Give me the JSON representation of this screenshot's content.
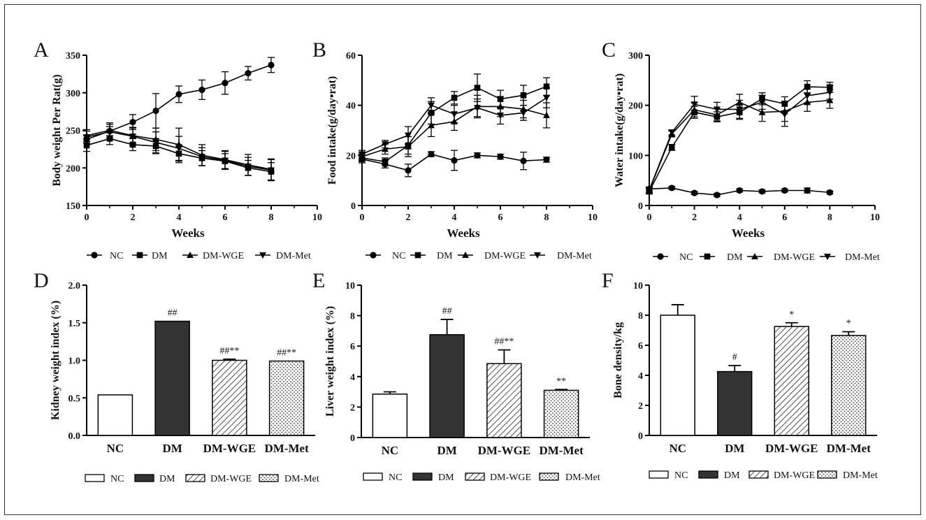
{
  "patterns": {
    "NC": "white",
    "DM": "solid",
    "DM-WGE": "hatch",
    "DM-Met": "dots"
  },
  "chart_data": [
    {
      "panel": "A",
      "type": "line",
      "xlabel": "Weeks",
      "ylabel": "Body weight Per Rat(g)",
      "xlim": [
        0,
        10
      ],
      "ylim": [
        150,
        350
      ],
      "xticks": [
        0,
        2,
        4,
        6,
        8,
        10
      ],
      "yticks": [
        150,
        200,
        250,
        300,
        350
      ],
      "x": [
        0,
        1,
        2,
        3,
        4,
        5,
        6,
        7,
        8
      ],
      "series": [
        {
          "name": "NC",
          "marker": "circle",
          "values": [
            238,
            249,
            261,
            276,
            298,
            304,
            313,
            326,
            337
          ],
          "errors": [
            5,
            6,
            10,
            23,
            11,
            13,
            15,
            9,
            10
          ]
        },
        {
          "name": "DM",
          "marker": "square",
          "values": [
            230,
            239,
            231,
            229,
            219,
            213,
            209,
            200,
            195
          ],
          "errors": [
            8,
            8,
            8,
            10,
            12,
            10,
            10,
            10,
            12
          ]
        },
        {
          "name": "DM-WGE",
          "marker": "triangle",
          "values": [
            243,
            250,
            243,
            238,
            231,
            217,
            211,
            204,
            198
          ],
          "errors": [
            8,
            10,
            10,
            15,
            22,
            14,
            12,
            14,
            14
          ]
        },
        {
          "name": "DM-Met",
          "marker": "triangle-down",
          "values": [
            241,
            248,
            242,
            234,
            226,
            215,
            210,
            202,
            197
          ],
          "errors": [
            8,
            10,
            12,
            14,
            16,
            12,
            12,
            12,
            14
          ]
        }
      ],
      "legend": [
        "NC",
        "DM",
        "DM-WGE",
        "DM-Met"
      ]
    },
    {
      "panel": "B",
      "type": "line",
      "xlabel": "Weeks",
      "ylabel": "Food intake(g/day•rat)",
      "xlim": [
        0,
        10
      ],
      "ylim": [
        0,
        60
      ],
      "xticks": [
        0,
        2,
        4,
        6,
        8,
        10
      ],
      "yticks": [
        0,
        20,
        40,
        60
      ],
      "x": [
        0,
        1,
        2,
        3,
        4,
        5,
        6,
        7,
        8
      ],
      "series": [
        {
          "name": "NC",
          "marker": "circle",
          "values": [
            18.5,
            16.5,
            14,
            20.5,
            18,
            20,
            19.5,
            17.8,
            18.3
          ],
          "errors": [
            1.5,
            1.5,
            2.5,
            1,
            4,
            1,
            1,
            3.5,
            1
          ]
        },
        {
          "name": "DM",
          "marker": "square",
          "values": [
            19,
            17.5,
            24,
            37,
            43,
            47,
            42.5,
            44,
            47.5
          ],
          "errors": [
            1.5,
            1.5,
            3.5,
            4.5,
            2.5,
            5.5,
            3.5,
            4,
            3.5
          ]
        },
        {
          "name": "DM-WGE",
          "marker": "triangle",
          "values": [
            19.5,
            22.5,
            23.5,
            32,
            33.5,
            39.5,
            39.5,
            38.5,
            36
          ],
          "errors": [
            1.5,
            2,
            4,
            4.5,
            3.5,
            4.5,
            4,
            3.5,
            5
          ]
        },
        {
          "name": "DM-Met",
          "marker": "triangle-down",
          "values": [
            20.5,
            24.5,
            28,
            40,
            36.5,
            39,
            36,
            37,
            43
          ],
          "errors": [
            1.5,
            1.5,
            3.5,
            3,
            3.5,
            3.5,
            3.5,
            3,
            4
          ]
        }
      ],
      "legend": [
        "NC",
        "DM",
        "DM-WGE",
        "DM-Met"
      ]
    },
    {
      "panel": "C",
      "type": "line",
      "xlabel": "Weeks",
      "ylabel": "Water  intake(g/day•rat)",
      "xlim": [
        0,
        10
      ],
      "ylim": [
        0,
        300
      ],
      "xticks": [
        0,
        2,
        4,
        6,
        8,
        10
      ],
      "yticks": [
        0,
        100,
        200,
        300
      ],
      "x": [
        0,
        1,
        2,
        3,
        4,
        5,
        6,
        7,
        8
      ],
      "series": [
        {
          "name": "NC",
          "marker": "circle",
          "values": [
            33,
            35,
            25,
            21,
            30,
            28,
            30,
            30,
            26
          ],
          "errors": [
            4,
            3,
            3,
            3,
            3,
            3,
            3,
            5,
            3
          ]
        },
        {
          "name": "DM",
          "marker": "square",
          "values": [
            28,
            116,
            186,
            177,
            186,
            213,
            203,
            237,
            236
          ],
          "errors": [
            5,
            6,
            12,
            10,
            14,
            12,
            14,
            12,
            10
          ]
        },
        {
          "name": "DM-WGE",
          "marker": "triangle",
          "values": [
            30,
            143,
            191,
            181,
            206,
            186,
            188,
            206,
            210
          ],
          "errors": [
            5,
            6,
            14,
            12,
            16,
            18,
            20,
            18,
            16
          ]
        },
        {
          "name": "DM-Met",
          "marker": "triangle-down",
          "values": [
            31,
            146,
            202,
            192,
            192,
            206,
            182,
            219,
            226
          ],
          "errors": [
            5,
            5,
            16,
            14,
            18,
            14,
            24,
            14,
            14
          ]
        }
      ],
      "legend": [
        "NC",
        "DM",
        "DM-WGE",
        "DM-Met"
      ]
    },
    {
      "panel": "D",
      "type": "bar",
      "ylabel": "Kidney weight index (%)",
      "ylim": [
        0,
        2
      ],
      "yticks": [
        "0.0",
        "0.5",
        "1.0",
        "1.5",
        "2.0"
      ],
      "categories": [
        "NC",
        "DM",
        "DM-WGE",
        "DM-Met"
      ],
      "values": [
        0.54,
        1.52,
        1.0,
        0.99
      ],
      "errors": [
        0,
        0,
        0.015,
        0
      ],
      "annotations": [
        "",
        "##",
        "##**",
        "##**"
      ],
      "legend": [
        "NC",
        "DM",
        "DM-WGE",
        "DM-Met"
      ]
    },
    {
      "panel": "E",
      "type": "bar",
      "ylabel": "Liver weight index (%)",
      "ylim": [
        0,
        10
      ],
      "yticks": [
        "0",
        "2",
        "4",
        "6",
        "8",
        "10"
      ],
      "categories": [
        "NC",
        "DM",
        "DM-WGE",
        "DM-Met"
      ],
      "values": [
        2.85,
        6.75,
        4.85,
        3.1
      ],
      "errors": [
        0.15,
        1.0,
        0.9,
        0.05
      ],
      "annotations": [
        "",
        "##",
        "##**",
        "**"
      ],
      "legend": [
        "NC",
        "DM",
        "DM-WGE",
        "DM-Met"
      ]
    },
    {
      "panel": "F",
      "type": "bar",
      "ylabel": "Bone density/kg",
      "ylim": [
        0,
        10
      ],
      "yticks": [
        "0",
        "2",
        "4",
        "6",
        "8",
        "10"
      ],
      "categories": [
        "NC",
        "DM",
        "DM-WGE",
        "DM-Met"
      ],
      "values": [
        8.0,
        4.25,
        7.25,
        6.65
      ],
      "errors": [
        0.7,
        0.4,
        0.25,
        0.25
      ],
      "annotations": [
        "",
        "#",
        "*",
        "*"
      ],
      "legend": [
        "NC",
        "DM",
        "DM-WGE",
        "DM-Met"
      ]
    }
  ]
}
